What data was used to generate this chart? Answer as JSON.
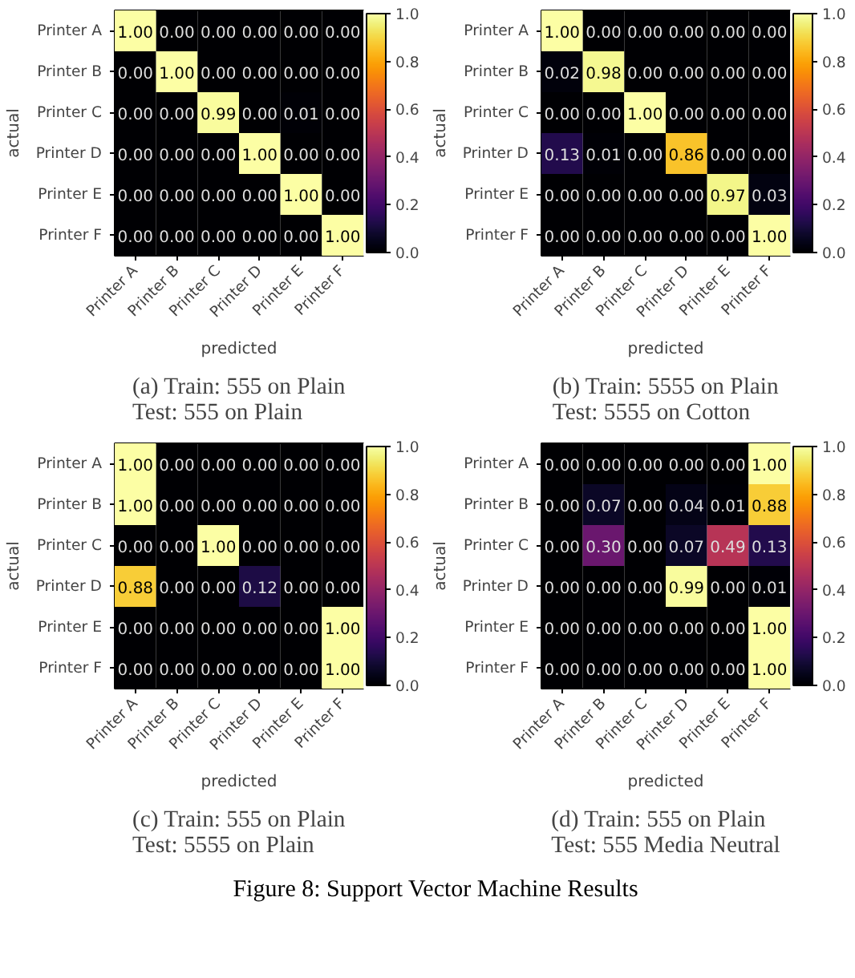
{
  "chart_data": [
    {
      "type": "heatmap",
      "title": "(a) Train: 555 on Plain\nTest: 555 on Plain",
      "xlabel": "predicted",
      "ylabel": "actual",
      "categories": [
        "Printer A",
        "Printer B",
        "Printer C",
        "Printer D",
        "Printer E",
        "Printer F"
      ],
      "y_categories": [
        "Printer A",
        "Printer B",
        "Printer C",
        "Printer D",
        "Printer E",
        "Printer F"
      ],
      "cells": [
        [
          1.0,
          0.0,
          0.0,
          0.0,
          0.0,
          0.0
        ],
        [
          0.0,
          1.0,
          0.0,
          0.0,
          0.0,
          0.0
        ],
        [
          0.0,
          0.0,
          0.99,
          0.0,
          0.01,
          0.0
        ],
        [
          0.0,
          0.0,
          0.0,
          1.0,
          0.0,
          0.0
        ],
        [
          0.0,
          0.0,
          0.0,
          0.0,
          1.0,
          0.0
        ],
        [
          0.0,
          0.0,
          0.0,
          0.0,
          0.0,
          1.0
        ]
      ],
      "cell_labels": [
        [
          "1.00",
          "0.00",
          "0.00",
          "0.00",
          "0.00",
          "0.00"
        ],
        [
          "0.00",
          "1.00",
          "0.00",
          "0.00",
          "0.00",
          "0.00"
        ],
        [
          "0.00",
          "0.00",
          "0.99",
          "0.00",
          "0.01",
          "0.00"
        ],
        [
          "0.00",
          "0.00",
          "0.00",
          "1.00",
          "0.00",
          "0.00"
        ],
        [
          "0.00",
          "0.00",
          "0.00",
          "0.00",
          "1.00",
          "0.00"
        ],
        [
          "0.00",
          "0.00",
          "0.00",
          "0.00",
          "0.00",
          "1.00"
        ]
      ],
      "clim": [
        0,
        1
      ],
      "cticks": [
        {
          "value": 0,
          "label": "0.0"
        },
        {
          "value": 0.2,
          "label": "0.2"
        },
        {
          "value": 0.4,
          "label": "0.4"
        },
        {
          "value": 0.6,
          "label": "0.6"
        },
        {
          "value": 0.8,
          "label": "0.8"
        },
        {
          "value": 1,
          "label": "1.0"
        }
      ]
    },
    {
      "type": "heatmap",
      "title": "(b) Train: 5555 on Plain\nTest: 5555 on Cotton",
      "xlabel": "predicted",
      "ylabel": "actual",
      "categories": [
        "Printer A",
        "Printer B",
        "Printer C",
        "Printer D",
        "Printer E",
        "Printer F"
      ],
      "y_categories": [
        "Printer A",
        "Printer B",
        "Printer C",
        "Printer D",
        "Printer E",
        "Printer F"
      ],
      "cells": [
        [
          1.0,
          0.0,
          0.0,
          0.0,
          0.0,
          0.0
        ],
        [
          0.02,
          0.98,
          0.0,
          0.0,
          0.0,
          0.0
        ],
        [
          0.0,
          0.0,
          1.0,
          0.0,
          0.0,
          0.0
        ],
        [
          0.13,
          0.01,
          0.0,
          0.86,
          0.0,
          0.0
        ],
        [
          0.0,
          0.0,
          0.0,
          0.0,
          0.97,
          0.03
        ],
        [
          0.0,
          0.0,
          0.0,
          0.0,
          0.0,
          1.0
        ]
      ],
      "cell_labels": [
        [
          "1.00",
          "0.00",
          "0.00",
          "0.00",
          "0.00",
          "0.00"
        ],
        [
          "0.02",
          "0.98",
          "0.00",
          "0.00",
          "0.00",
          "0.00"
        ],
        [
          "0.00",
          "0.00",
          "1.00",
          "0.00",
          "0.00",
          "0.00"
        ],
        [
          "0.13",
          "0.01",
          "0.00",
          "0.86",
          "0.00",
          "0.00"
        ],
        [
          "0.00",
          "0.00",
          "0.00",
          "0.00",
          "0.97",
          "0.03"
        ],
        [
          "0.00",
          "0.00",
          "0.00",
          "0.00",
          "0.00",
          "1.00"
        ]
      ],
      "clim": [
        0,
        1
      ],
      "cticks": [
        {
          "value": 0,
          "label": "0.0"
        },
        {
          "value": 0.2,
          "label": "0.2"
        },
        {
          "value": 0.4,
          "label": "0.4"
        },
        {
          "value": 0.6,
          "label": "0.6"
        },
        {
          "value": 0.8,
          "label": "0.8"
        },
        {
          "value": 1,
          "label": "1.0"
        }
      ]
    },
    {
      "type": "heatmap",
      "title": "(c) Train: 555 on Plain\nTest: 5555 on Plain",
      "xlabel": "predicted",
      "ylabel": "actual",
      "categories": [
        "Printer A",
        "Printer B",
        "Printer C",
        "Printer D",
        "Printer E",
        "Printer F"
      ],
      "y_categories": [
        "Printer A",
        "Printer B",
        "Printer C",
        "Printer D",
        "Printer E",
        "Printer F"
      ],
      "cells": [
        [
          1.0,
          0.0,
          0.0,
          0.0,
          0.0,
          0.0
        ],
        [
          1.0,
          0.0,
          0.0,
          0.0,
          0.0,
          0.0
        ],
        [
          0.0,
          0.0,
          1.0,
          0.0,
          0.0,
          0.0
        ],
        [
          0.88,
          0.0,
          0.0,
          0.12,
          0.0,
          0.0
        ],
        [
          0.0,
          0.0,
          0.0,
          0.0,
          0.0,
          1.0
        ],
        [
          0.0,
          0.0,
          0.0,
          0.0,
          0.0,
          1.0
        ]
      ],
      "cell_labels": [
        [
          "1.00",
          "0.00",
          "0.00",
          "0.00",
          "0.00",
          "0.00"
        ],
        [
          "1.00",
          "0.00",
          "0.00",
          "0.00",
          "0.00",
          "0.00"
        ],
        [
          "0.00",
          "0.00",
          "1.00",
          "0.00",
          "0.00",
          "0.00"
        ],
        [
          "0.88",
          "0.00",
          "0.00",
          "0.12",
          "0.00",
          "0.00"
        ],
        [
          "0.00",
          "0.00",
          "0.00",
          "0.00",
          "0.00",
          "1.00"
        ],
        [
          "0.00",
          "0.00",
          "0.00",
          "0.00",
          "0.00",
          "1.00"
        ]
      ],
      "clim": [
        0,
        1
      ],
      "cticks": [
        {
          "value": 0,
          "label": "0.0"
        },
        {
          "value": 0.2,
          "label": "0.2"
        },
        {
          "value": 0.4,
          "label": "0.4"
        },
        {
          "value": 0.6,
          "label": "0.6"
        },
        {
          "value": 0.8,
          "label": "0.8"
        },
        {
          "value": 1,
          "label": "1.0"
        }
      ]
    },
    {
      "type": "heatmap",
      "title": "(d) Train: 555 on Plain\nTest: 555 Media Neutral",
      "xlabel": "predicted",
      "ylabel": "actual",
      "categories": [
        "Printer A",
        "Printer B",
        "Printer C",
        "Printer D",
        "Printer E",
        "Printer F"
      ],
      "y_categories": [
        "Printer A",
        "Printer B",
        "Printer C",
        "Printer D",
        "Printer E",
        "Printer F"
      ],
      "cells": [
        [
          0.0,
          0.0,
          0.0,
          0.0,
          0.0,
          1.0
        ],
        [
          0.0,
          0.07,
          0.0,
          0.04,
          0.01,
          0.88
        ],
        [
          0.0,
          0.3,
          0.0,
          0.07,
          0.49,
          0.13
        ],
        [
          0.0,
          0.0,
          0.0,
          0.99,
          0.0,
          0.01
        ],
        [
          0.0,
          0.0,
          0.0,
          0.0,
          0.0,
          1.0
        ],
        [
          0.0,
          0.0,
          0.0,
          0.0,
          0.0,
          1.0
        ]
      ],
      "cell_labels": [
        [
          "0.00",
          "0.00",
          "0.00",
          "0.00",
          "0.00",
          "1.00"
        ],
        [
          "0.00",
          "0.07",
          "0.00",
          "0.04",
          "0.01",
          "0.88"
        ],
        [
          "0.00",
          "0.30",
          "0.00",
          "0.07",
          "0.49",
          "0.13"
        ],
        [
          "0.00",
          "0.00",
          "0.00",
          "0.99",
          "0.00",
          "0.01"
        ],
        [
          "0.00",
          "0.00",
          "0.00",
          "0.00",
          "0.00",
          "1.00"
        ],
        [
          "0.00",
          "0.00",
          "0.00",
          "0.00",
          "0.00",
          "1.00"
        ]
      ],
      "clim": [
        0,
        1
      ],
      "cticks": [
        {
          "value": 0,
          "label": "0.0"
        },
        {
          "value": 0.2,
          "label": "0.2"
        },
        {
          "value": 0.4,
          "label": "0.4"
        },
        {
          "value": 0.6,
          "label": "0.6"
        },
        {
          "value": 0.8,
          "label": "0.8"
        },
        {
          "value": 1,
          "label": "1.0"
        }
      ],
      "annotations": [
        "Figure 8: Support Vector Machine Results"
      ]
    }
  ]
}
